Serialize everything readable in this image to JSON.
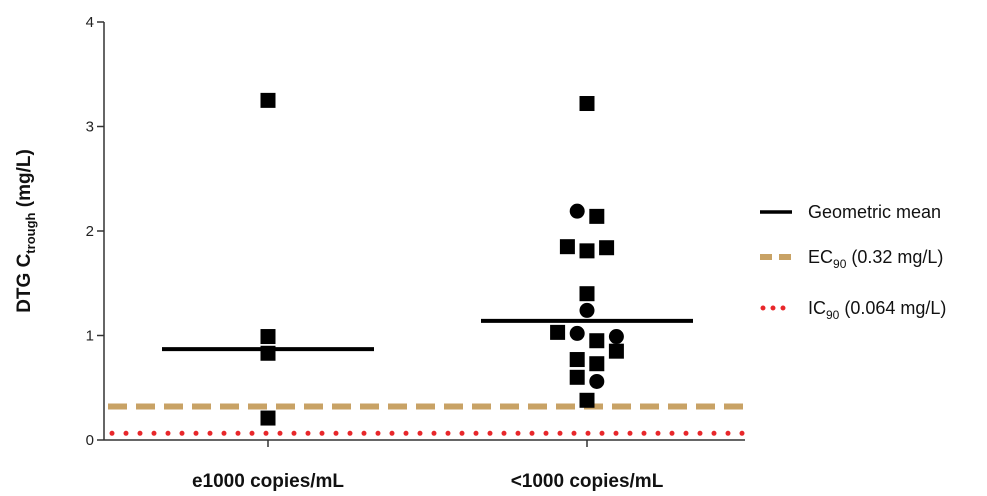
{
  "chart_data": {
    "type": "scatter",
    "ylabel": {
      "main": "DTG C",
      "sub": "trough",
      "unit": " (mg/L)"
    },
    "categories": [
      "e1000 copies/mL",
      "<1000 copies/mL"
    ],
    "ylim": [
      0,
      4
    ],
    "yticks": [
      "0",
      "1",
      "2",
      "3",
      "4"
    ],
    "points": [
      {
        "group": 0,
        "offset": 0.0,
        "y": 3.25,
        "marker": "square"
      },
      {
        "group": 0,
        "offset": 0.0,
        "y": 0.99,
        "marker": "square"
      },
      {
        "group": 0,
        "offset": 0.0,
        "y": 0.83,
        "marker": "square"
      },
      {
        "group": 0,
        "offset": 0.0,
        "y": 0.21,
        "marker": "square"
      },
      {
        "group": 1,
        "offset": 0.0,
        "y": 3.22,
        "marker": "square"
      },
      {
        "group": 1,
        "offset": -0.07,
        "y": 2.19,
        "marker": "circle"
      },
      {
        "group": 1,
        "offset": 0.07,
        "y": 2.14,
        "marker": "square"
      },
      {
        "group": 1,
        "offset": -0.14,
        "y": 1.85,
        "marker": "square"
      },
      {
        "group": 1,
        "offset": 0.0,
        "y": 1.81,
        "marker": "square"
      },
      {
        "group": 1,
        "offset": 0.14,
        "y": 1.84,
        "marker": "square"
      },
      {
        "group": 1,
        "offset": 0.0,
        "y": 1.4,
        "marker": "square"
      },
      {
        "group": 1,
        "offset": 0.0,
        "y": 1.24,
        "marker": "circle"
      },
      {
        "group": 1,
        "offset": -0.21,
        "y": 1.03,
        "marker": "square"
      },
      {
        "group": 1,
        "offset": -0.07,
        "y": 1.02,
        "marker": "circle"
      },
      {
        "group": 1,
        "offset": 0.07,
        "y": 0.95,
        "marker": "square"
      },
      {
        "group": 1,
        "offset": 0.21,
        "y": 0.99,
        "marker": "circle"
      },
      {
        "group": 1,
        "offset": 0.21,
        "y": 0.85,
        "marker": "square"
      },
      {
        "group": 1,
        "offset": -0.07,
        "y": 0.77,
        "marker": "square"
      },
      {
        "group": 1,
        "offset": 0.07,
        "y": 0.73,
        "marker": "square"
      },
      {
        "group": 1,
        "offset": -0.07,
        "y": 0.6,
        "marker": "square"
      },
      {
        "group": 1,
        "offset": 0.07,
        "y": 0.56,
        "marker": "circle"
      },
      {
        "group": 1,
        "offset": 0.0,
        "y": 0.38,
        "marker": "square"
      }
    ],
    "geometric_means": [
      0.87,
      1.14
    ],
    "reference_lines": [
      {
        "name": "EC",
        "sub": "90",
        "detail": " (0.32 mg/L)",
        "value": 0.32,
        "color": "#c8a265",
        "style": "dashed"
      },
      {
        "name": "IC",
        "sub": "90",
        "detail": " (0.064 mg/L)",
        "value": 0.064,
        "color": "#e8272a",
        "style": "dotted"
      }
    ],
    "legend": {
      "position": "right",
      "mean_label": "Geometric mean"
    },
    "colors": {
      "markers": "#000000",
      "mean_line": "#000000",
      "axis": "#333333"
    }
  }
}
